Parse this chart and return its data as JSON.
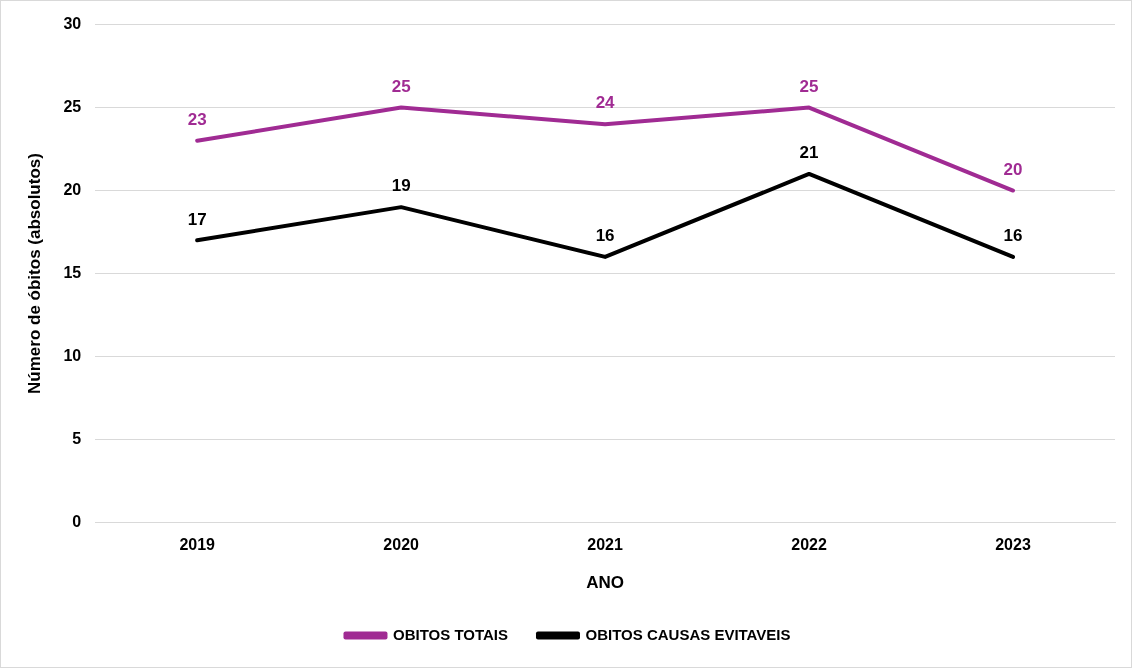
{
  "chart_data": {
    "type": "line",
    "xlabel": "ANO",
    "ylabel": "Número de óbitos (absolutos)",
    "categories": [
      "2019",
      "2020",
      "2021",
      "2022",
      "2023"
    ],
    "series": [
      {
        "name": "OBITOS TOTAIS",
        "color": "#a02b93",
        "values": [
          23,
          25,
          24,
          25,
          20
        ]
      },
      {
        "name": "OBITOS CAUSAS EVITAVEIS",
        "color": "#000000",
        "values": [
          17,
          19,
          16,
          21,
          16
        ]
      }
    ],
    "ylim": [
      0,
      30
    ],
    "yticks": [
      0,
      5,
      10,
      15,
      20,
      25,
      30
    ],
    "grid": "y",
    "legend": "bottom",
    "marker": "none",
    "line_style": "solid",
    "data_labels": true
  }
}
